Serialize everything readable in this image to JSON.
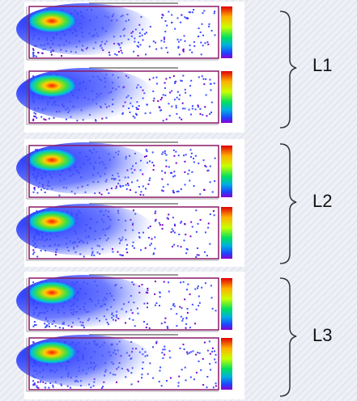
{
  "labels": [
    "L1",
    "L2",
    "L3"
  ]
}
